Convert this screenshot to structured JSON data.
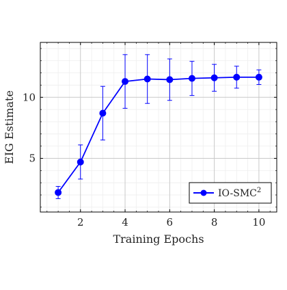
{
  "chart_data": {
    "type": "line",
    "title": "",
    "xlabel": "Training Epochs",
    "ylabel": "EIG Estimate",
    "xlim": [
      0.2,
      10.8
    ],
    "ylim": [
      0.6,
      14.5
    ],
    "xticks": [
      2,
      4,
      6,
      8,
      10
    ],
    "yticks": [
      5,
      10
    ],
    "grid": {
      "major": true,
      "minor": true
    },
    "legend_position": "bottom-right",
    "series": [
      {
        "name": "IO-SMC",
        "name_superscript": "2",
        "color": "#0000ff",
        "marker": "circle",
        "x": [
          1,
          2,
          3,
          4,
          5,
          6,
          7,
          8,
          9,
          10
        ],
        "y": [
          2.2,
          4.7,
          8.7,
          11.3,
          11.5,
          11.45,
          11.55,
          11.6,
          11.65,
          11.65
        ],
        "err": [
          0.5,
          1.4,
          2.2,
          2.2,
          2.0,
          1.7,
          1.4,
          1.1,
          0.9,
          0.6
        ]
      }
    ]
  }
}
